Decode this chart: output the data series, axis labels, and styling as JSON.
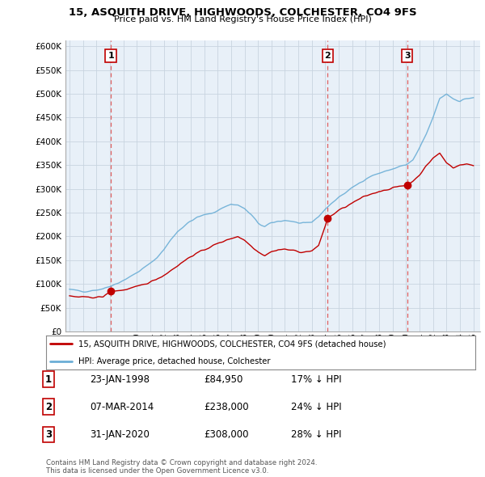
{
  "title": "15, ASQUITH DRIVE, HIGHWOODS, COLCHESTER, CO4 9FS",
  "subtitle": "Price paid vs. HM Land Registry's House Price Index (HPI)",
  "ylabel_ticks": [
    "£0",
    "£50K",
    "£100K",
    "£150K",
    "£200K",
    "£250K",
    "£300K",
    "£350K",
    "£400K",
    "£450K",
    "£500K",
    "£550K",
    "£600K"
  ],
  "ytick_values": [
    0,
    50000,
    100000,
    150000,
    200000,
    250000,
    300000,
    350000,
    400000,
    450000,
    500000,
    550000,
    600000
  ],
  "ylim": [
    0,
    612000
  ],
  "xlim_start": 1994.7,
  "xlim_end": 2025.5,
  "xtick_years": [
    1995,
    1996,
    1997,
    1998,
    1999,
    2000,
    2001,
    2002,
    2003,
    2004,
    2005,
    2006,
    2007,
    2008,
    2009,
    2010,
    2011,
    2012,
    2013,
    2014,
    2015,
    2016,
    2017,
    2018,
    2019,
    2020,
    2021,
    2022,
    2023,
    2024,
    2025
  ],
  "hpi_color": "#6baed6",
  "price_color": "#c00000",
  "marker_color": "#c00000",
  "vline_color": "#e06060",
  "chart_bg": "#e8f0f8",
  "sale_points": [
    {
      "year": 1998.07,
      "price": 84950,
      "label": "1"
    },
    {
      "year": 2014.18,
      "price": 238000,
      "label": "2"
    },
    {
      "year": 2020.08,
      "price": 308000,
      "label": "3"
    }
  ],
  "legend_entries": [
    "15, ASQUITH DRIVE, HIGHWOODS, COLCHESTER, CO4 9FS (detached house)",
    "HPI: Average price, detached house, Colchester"
  ],
  "table_rows": [
    [
      "1",
      "23-JAN-1998",
      "£84,950",
      "17% ↓ HPI"
    ],
    [
      "2",
      "07-MAR-2014",
      "£238,000",
      "24% ↓ HPI"
    ],
    [
      "3",
      "31-JAN-2020",
      "£308,000",
      "28% ↓ HPI"
    ]
  ],
  "footer": "Contains HM Land Registry data © Crown copyright and database right 2024.\nThis data is licensed under the Open Government Licence v3.0.",
  "background_color": "#ffffff",
  "grid_color": "#c8d4e0"
}
